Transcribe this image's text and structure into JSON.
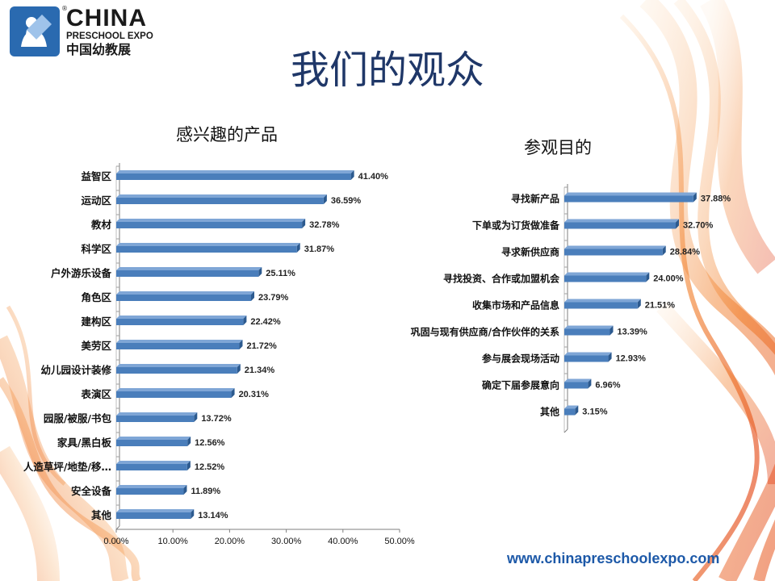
{
  "header": {
    "logo_en": "CHINA",
    "logo_sub": "PRESCHOOL EXPO",
    "logo_cn": "中国幼教展",
    "logo_reg": "®",
    "title": "我们的观众"
  },
  "footer": {
    "website": "www.chinapreschoolexpo.com"
  },
  "colors": {
    "bar": "#4a7ebb",
    "bar_dark": "#2c5a8f",
    "title": "#1f3768",
    "link": "#1d59a8",
    "ribbon": "#f07a2a"
  },
  "icons": {
    "logo": "child-pencil-logo-icon"
  },
  "chart_data": [
    {
      "type": "bar",
      "orientation": "horizontal",
      "title": "感兴趣的产品",
      "xlabel": "",
      "ylabel": "",
      "xlim": [
        0,
        50
      ],
      "x_ticks": [
        "0.00%",
        "10.00%",
        "20.00%",
        "30.00%",
        "40.00%",
        "50.00%"
      ],
      "tick_values": [
        0,
        10,
        20,
        30,
        40,
        50
      ],
      "grid": false,
      "categories": [
        "益智区",
        "运动区",
        "教材",
        "科学区",
        "户外游乐设备",
        "角色区",
        "建构区",
        "美劳区",
        "幼儿园设计装修",
        "表演区",
        "园服/被服/书包",
        "家具/黑白板",
        "人造草坪/地垫/移…",
        "安全设备",
        "其他"
      ],
      "values": [
        41.4,
        36.59,
        32.78,
        31.87,
        25.11,
        23.79,
        22.42,
        21.72,
        21.34,
        20.31,
        13.72,
        12.56,
        12.52,
        11.89,
        13.14
      ],
      "labels": [
        "41.40%",
        "36.59%",
        "32.78%",
        "31.87%",
        "25.11%",
        "23.79%",
        "22.42%",
        "21.72%",
        "21.34%",
        "20.31%",
        "13.72%",
        "12.56%",
        "12.52%",
        "11.89%",
        "13.14%"
      ]
    },
    {
      "type": "bar",
      "orientation": "horizontal",
      "title": "参观目的",
      "xlabel": "",
      "ylabel": "",
      "xlim": [
        0,
        40
      ],
      "grid": false,
      "categories": [
        "寻找新产品",
        "下单或为订货做准备",
        "寻求新供应商",
        "寻找投资、合作或加盟机会",
        "收集市场和产品信息",
        "巩固与现有供应商/合作伙伴的关系",
        "参与展会现场活动",
        "确定下届参展意向",
        "其他"
      ],
      "values": [
        37.88,
        32.7,
        28.84,
        24.0,
        21.51,
        13.39,
        12.93,
        6.96,
        3.15
      ],
      "labels": [
        "37.88%",
        "32.70%",
        "28.84%",
        "24.00%",
        "21.51%",
        "13.39%",
        "12.93%",
        "6.96%",
        "3.15%"
      ]
    }
  ]
}
